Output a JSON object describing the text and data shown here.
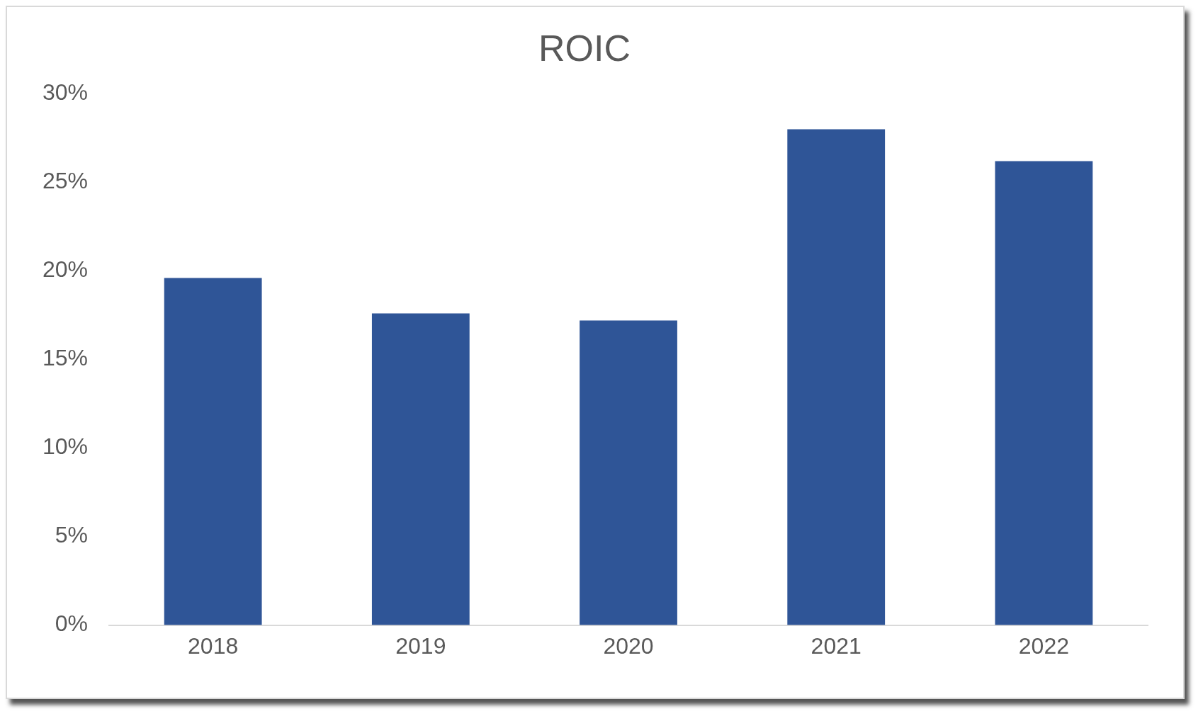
{
  "chart_data": {
    "type": "bar",
    "title": "ROIC",
    "categories": [
      "2018",
      "2019",
      "2020",
      "2021",
      "2022"
    ],
    "values": [
      19.6,
      17.6,
      17.2,
      28.0,
      26.2
    ],
    "color": "#2f5597",
    "ylim": [
      0,
      30
    ],
    "yticks": [
      {
        "value": 0,
        "label": "0%"
      },
      {
        "value": 5,
        "label": "5%"
      },
      {
        "value": 10,
        "label": "10%"
      },
      {
        "value": 15,
        "label": "15%"
      },
      {
        "value": 20,
        "label": "20%"
      },
      {
        "value": 25,
        "label": "25%"
      },
      {
        "value": 30,
        "label": "30%"
      }
    ],
    "grid": false,
    "legend": false
  }
}
